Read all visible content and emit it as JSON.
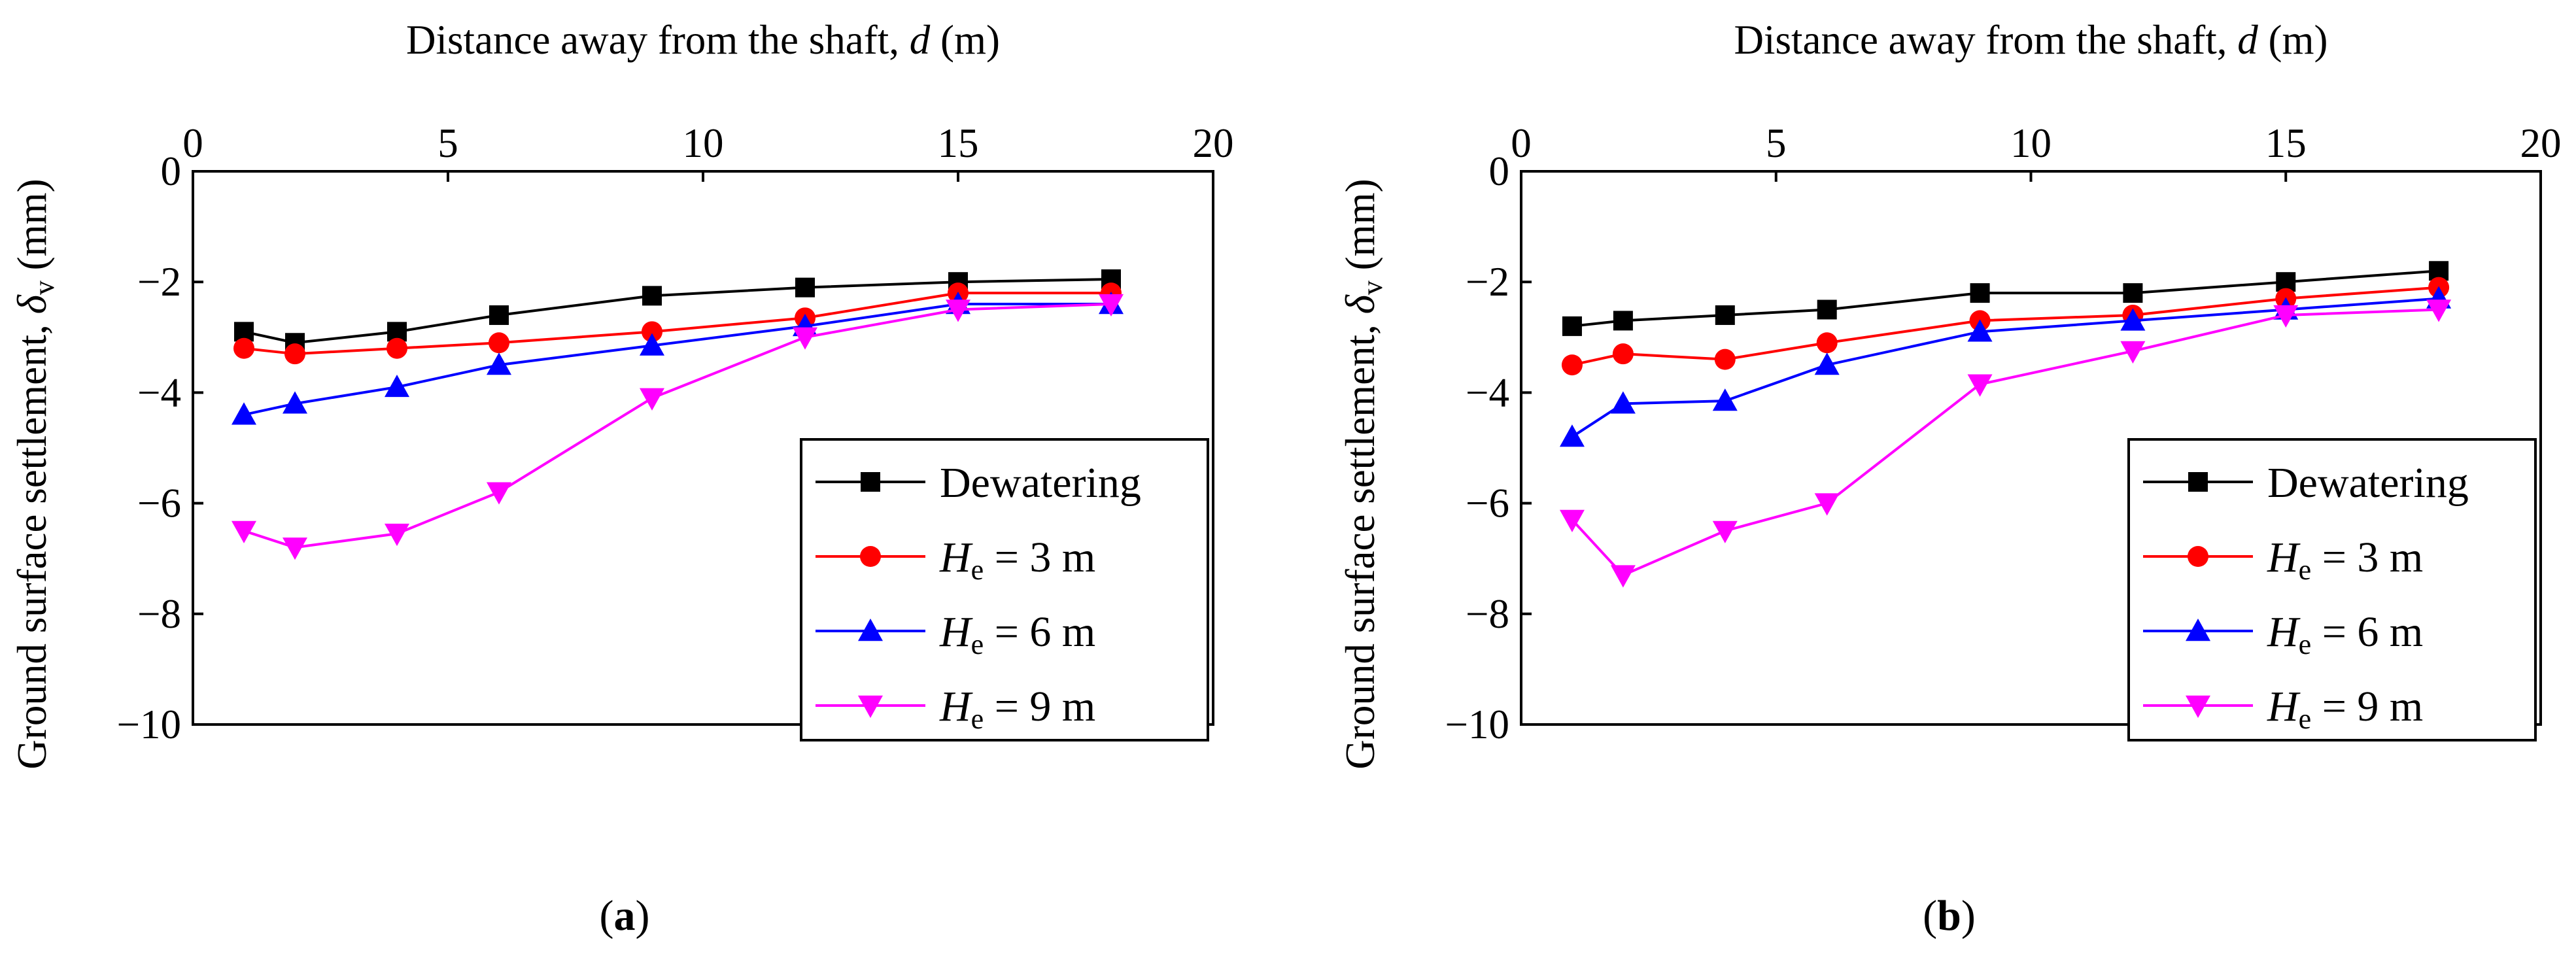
{
  "chart_data": [
    {
      "type": "line",
      "panel_label": "(a)",
      "panel_letter": "a",
      "xlabel_text": "Distance away from the shaft, ",
      "xlabel_var": "d",
      "xlabel_unit": " (m)",
      "ylabel_text": "Ground surface settlement, ",
      "ylabel_var": "δ",
      "ylabel_sub": "v",
      "ylabel_unit": " (mm)",
      "xlim": [
        0,
        20
      ],
      "ylim": [
        -10,
        0
      ],
      "xticks": [
        0,
        5,
        10,
        15,
        20
      ],
      "yticks": [
        0,
        -2,
        -4,
        -6,
        -8,
        -10
      ],
      "x_axis_position": "top",
      "legend_position": "bottom-right",
      "x": [
        1,
        2,
        4,
        6,
        9,
        12,
        15,
        18
      ],
      "series": [
        {
          "name": "Dewatering",
          "color": "#000000",
          "marker": "square",
          "values": [
            -2.9,
            -3.1,
            -2.9,
            -2.6,
            -2.25,
            -2.1,
            -2.0,
            -1.95
          ]
        },
        {
          "name": "He = 3 m",
          "var": "H",
          "sub": "e",
          "rest": " = 3 m",
          "color": "#ff0000",
          "marker": "circle",
          "values": [
            -3.2,
            -3.3,
            -3.2,
            -3.1,
            -2.9,
            -2.65,
            -2.2,
            -2.2
          ]
        },
        {
          "name": "He = 6 m",
          "var": "H",
          "sub": "e",
          "rest": " = 6 m",
          "color": "#0000ff",
          "marker": "triangle-up",
          "values": [
            -4.4,
            -4.2,
            -3.9,
            -3.5,
            -3.15,
            -2.8,
            -2.4,
            -2.4
          ]
        },
        {
          "name": "He = 9 m",
          "var": "H",
          "sub": "e",
          "rest": " = 9 m",
          "color": "#ff00ff",
          "marker": "triangle-down",
          "values": [
            -6.5,
            -6.8,
            -6.55,
            -5.8,
            -4.1,
            -3.0,
            -2.5,
            -2.4
          ]
        }
      ]
    },
    {
      "type": "line",
      "panel_label": "(b)",
      "panel_letter": "b",
      "xlabel_text": "Distance away from the shaft, ",
      "xlabel_var": "d",
      "xlabel_unit": " (m)",
      "ylabel_text": "Ground surface settlement, ",
      "ylabel_var": "δ",
      "ylabel_sub": "v",
      "ylabel_unit": " (mm)",
      "xlim": [
        0,
        20
      ],
      "ylim": [
        -10,
        0
      ],
      "xticks": [
        0,
        5,
        10,
        15,
        20
      ],
      "yticks": [
        0,
        -2,
        -4,
        -6,
        -8,
        -10
      ],
      "x_axis_position": "top",
      "legend_position": "bottom-right",
      "x": [
        1,
        2,
        4,
        6,
        9,
        12,
        15,
        18
      ],
      "series": [
        {
          "name": "Dewatering",
          "color": "#000000",
          "marker": "square",
          "values": [
            -2.8,
            -2.7,
            -2.6,
            -2.5,
            -2.2,
            -2.2,
            -2.0,
            -1.8
          ]
        },
        {
          "name": "He = 3 m",
          "var": "H",
          "sub": "e",
          "rest": " = 3 m",
          "color": "#ff0000",
          "marker": "circle",
          "values": [
            -3.5,
            -3.3,
            -3.4,
            -3.1,
            -2.7,
            -2.6,
            -2.3,
            -2.1
          ]
        },
        {
          "name": "He = 6 m",
          "var": "H",
          "sub": "e",
          "rest": " = 6 m",
          "color": "#0000ff",
          "marker": "triangle-up",
          "values": [
            -4.8,
            -4.2,
            -4.15,
            -3.5,
            -2.9,
            -2.7,
            -2.5,
            -2.3
          ]
        },
        {
          "name": "He = 9 m",
          "var": "H",
          "sub": "e",
          "rest": " = 9 m",
          "color": "#ff00ff",
          "marker": "triangle-down",
          "values": [
            -6.3,
            -7.3,
            -6.5,
            -6.0,
            -3.85,
            -3.25,
            -2.6,
            -2.5
          ]
        }
      ]
    }
  ]
}
